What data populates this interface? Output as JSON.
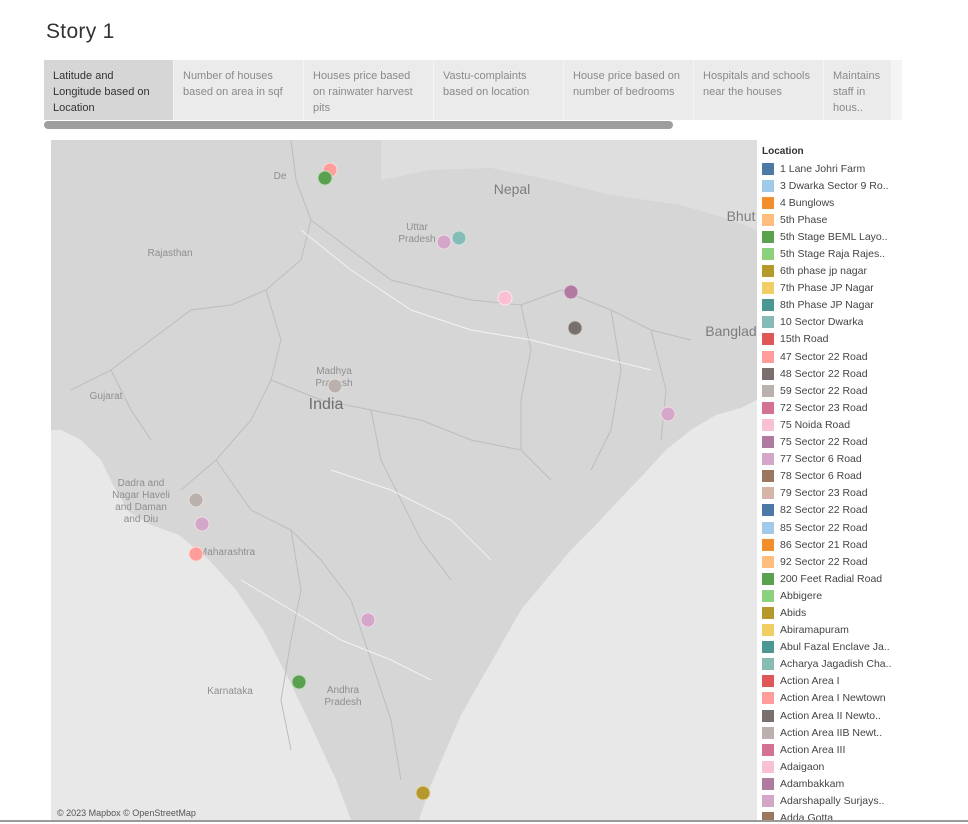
{
  "story": {
    "title": "Story 1"
  },
  "tabs": [
    {
      "label": "Latitude and Longitude based on Location",
      "active": true
    },
    {
      "label": "Number of houses based on area in sqf",
      "active": false
    },
    {
      "label": "Houses price based on rainwater harvest pits",
      "active": false
    },
    {
      "label": "Vastu-complaints based on location",
      "active": false
    },
    {
      "label": "House price based on number of bedrooms",
      "active": false
    },
    {
      "label": "Hospitals and schools near the houses",
      "active": false
    },
    {
      "label": "Maintains staff in hous..",
      "active": false
    }
  ],
  "map": {
    "attribution": "© 2023 Mapbox © OpenStreetMap",
    "labels": {
      "nepal": "Nepal",
      "bhutan": "Bhut",
      "bangladesh": "Banglad",
      "uttar_pradesh": "Uttar\nPradesh",
      "rajasthan": "Rajasthan",
      "madhya_pradesh": "Madhya\nPradesh",
      "india": "India",
      "gujarat": "Gujarat",
      "dadra": "Dadra and\nNagar Haveli\nand Daman\nand Diu",
      "maharashtra": "Maharashtra",
      "karnataka": "Karnataka",
      "andhra_pradesh": "Andhra\nPradesh",
      "delhi": "De"
    },
    "points": [
      {
        "lat": 28.65,
        "lon": 77.22,
        "color": "#ff9d9a"
      },
      {
        "lat": 28.45,
        "lon": 77.05,
        "color": "#59a14f"
      },
      {
        "lat": 26.85,
        "lon": 80.95,
        "color": "#d4a6c8"
      },
      {
        "lat": 26.95,
        "lon": 81.45,
        "color": "#86bcb6"
      },
      {
        "lat": 25.6,
        "lon": 85.1,
        "color": "#b07aa1"
      },
      {
        "lat": 25.45,
        "lon": 82.95,
        "color": "#fabfd2"
      },
      {
        "lat": 24.7,
        "lon": 85.25,
        "color": "#79706e"
      },
      {
        "lat": 23.25,
        "lon": 77.4,
        "color": "#bab0ac"
      },
      {
        "lat": 22.55,
        "lon": 88.3,
        "color": "#d4a6c8"
      },
      {
        "lat": 20.4,
        "lon": 72.85,
        "color": "#bab0ac"
      },
      {
        "lat": 19.8,
        "lon": 73.05,
        "color": "#d4a6c8"
      },
      {
        "lat": 19.05,
        "lon": 72.85,
        "color": "#ff9d9a"
      },
      {
        "lat": 17.4,
        "lon": 78.48,
        "color": "#d4a6c8"
      },
      {
        "lat": 15.85,
        "lon": 76.2,
        "color": "#59a14f"
      },
      {
        "lat": 13.08,
        "lon": 80.27,
        "color": "#b6992d"
      }
    ]
  },
  "legend": {
    "title": "Location",
    "items": [
      {
        "label": "1 Lane Johri Farm",
        "color": "#4e79a7"
      },
      {
        "label": "3 Dwarka Sector 9 Ro..",
        "color": "#a0cbe8"
      },
      {
        "label": "4 Bunglows",
        "color": "#f28e2b"
      },
      {
        "label": "5th Phase",
        "color": "#ffbe7d"
      },
      {
        "label": "5th Stage BEML Layo..",
        "color": "#59a14f"
      },
      {
        "label": "5th Stage Raja Rajes..",
        "color": "#8cd17d"
      },
      {
        "label": "6th phase jp nagar",
        "color": "#b6992d"
      },
      {
        "label": "7th Phase JP Nagar",
        "color": "#f1ce63"
      },
      {
        "label": "8th Phase JP Nagar",
        "color": "#499894"
      },
      {
        "label": "10 Sector Dwarka",
        "color": "#86bcb6"
      },
      {
        "label": "15th Road",
        "color": "#e15759"
      },
      {
        "label": "47 Sector 22 Road",
        "color": "#ff9d9a"
      },
      {
        "label": "48 Sector 22 Road",
        "color": "#79706e"
      },
      {
        "label": "59 Sector 22 Road",
        "color": "#bab0ac"
      },
      {
        "label": "72 Sector 23 Road",
        "color": "#d37295"
      },
      {
        "label": "75 Noida Road",
        "color": "#fabfd2"
      },
      {
        "label": "75 Sector 22 Road",
        "color": "#b07aa1"
      },
      {
        "label": "77 Sector 6 Road",
        "color": "#d4a6c8"
      },
      {
        "label": "78 Sector 6 Road",
        "color": "#9d7660"
      },
      {
        "label": "79 Sector 23 Road",
        "color": "#d7b5a6"
      },
      {
        "label": "82 Sector 22 Road",
        "color": "#4e79a7"
      },
      {
        "label": "85 Sector 22 Road",
        "color": "#a0cbe8"
      },
      {
        "label": "86 Sector 21 Road",
        "color": "#f28e2b"
      },
      {
        "label": "92 Sector 22 Road",
        "color": "#ffbe7d"
      },
      {
        "label": "200 Feet Radial Road",
        "color": "#59a14f"
      },
      {
        "label": "Abbigere",
        "color": "#8cd17d"
      },
      {
        "label": "Abids",
        "color": "#b6992d"
      },
      {
        "label": "Abiramapuram",
        "color": "#f1ce63"
      },
      {
        "label": "Abul Fazal Enclave Ja..",
        "color": "#499894"
      },
      {
        "label": "Acharya Jagadish Cha..",
        "color": "#86bcb6"
      },
      {
        "label": "Action Area I",
        "color": "#e15759"
      },
      {
        "label": "Action Area I Newtown",
        "color": "#ff9d9a"
      },
      {
        "label": "Action Area II Newto..",
        "color": "#79706e"
      },
      {
        "label": "Action Area IIB Newt..",
        "color": "#bab0ac"
      },
      {
        "label": "Action Area III",
        "color": "#d37295"
      },
      {
        "label": "Adaigaon",
        "color": "#fabfd2"
      },
      {
        "label": "Adambakkam",
        "color": "#b07aa1"
      },
      {
        "label": "Adarshapally Surjays..",
        "color": "#d4a6c8"
      },
      {
        "label": "Adda Gotta",
        "color": "#9d7660"
      }
    ]
  }
}
